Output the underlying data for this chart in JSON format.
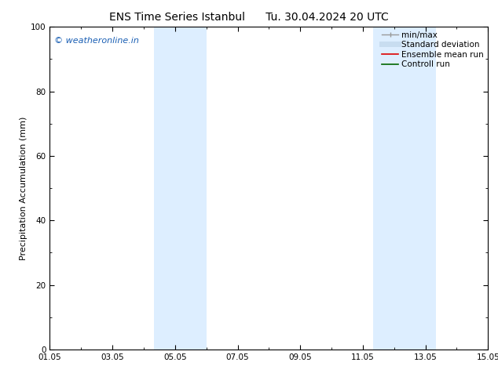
{
  "title_left": "ENS Time Series Istanbul",
  "title_right": "Tu. 30.04.2024 20 UTC",
  "ylabel": "Precipitation Accumulation (mm)",
  "xlim_start": 0,
  "xlim_end": 14,
  "ylim": [
    0,
    100
  ],
  "yticks": [
    0,
    20,
    40,
    60,
    80,
    100
  ],
  "xtick_labels": [
    "01.05",
    "03.05",
    "05.05",
    "07.05",
    "09.05",
    "11.05",
    "13.05",
    "15.05"
  ],
  "xtick_positions": [
    0,
    2,
    4,
    6,
    8,
    10,
    12,
    14
  ],
  "shaded_regions": [
    {
      "x_start": 3.33,
      "x_end": 5.0,
      "color": "#ddeeff"
    },
    {
      "x_start": 10.33,
      "x_end": 12.33,
      "color": "#ddeeff"
    }
  ],
  "watermark_text": "© weatheronline.in",
  "watermark_color": "#1a5fb4",
  "watermark_fontsize": 8,
  "legend_items": [
    {
      "label": "min/max",
      "color": "#999999",
      "linestyle": "-",
      "linewidth": 1.0
    },
    {
      "label": "Standard deviation",
      "color": "#c8ddf0",
      "linestyle": "-",
      "linewidth": 5
    },
    {
      "label": "Ensemble mean run",
      "color": "#dd0000",
      "linestyle": "-",
      "linewidth": 1.2
    },
    {
      "label": "Controll run",
      "color": "#006600",
      "linestyle": "-",
      "linewidth": 1.2
    }
  ],
  "title_fontsize": 10,
  "ylabel_fontsize": 8,
  "tick_fontsize": 7.5,
  "legend_fontsize": 7.5,
  "bg_color": "#ffffff",
  "plot_bg_color": "#ffffff",
  "spine_color": "#000000"
}
